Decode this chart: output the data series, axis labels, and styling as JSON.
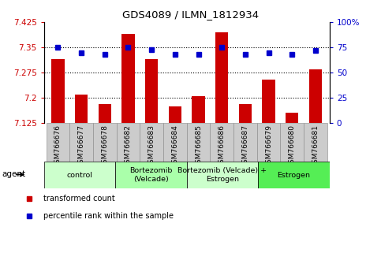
{
  "title": "GDS4089 / ILMN_1812934",
  "samples": [
    "GSM766676",
    "GSM766677",
    "GSM766678",
    "GSM766682",
    "GSM766683",
    "GSM766684",
    "GSM766685",
    "GSM766686",
    "GSM766687",
    "GSM766679",
    "GSM766680",
    "GSM766681"
  ],
  "bar_values": [
    7.315,
    7.21,
    7.18,
    7.39,
    7.315,
    7.175,
    7.205,
    7.395,
    7.18,
    7.255,
    7.155,
    7.285
  ],
  "percentile_values": [
    75,
    70,
    68,
    75,
    73,
    68,
    68,
    75,
    68,
    70,
    68,
    72
  ],
  "bar_color": "#cc0000",
  "percentile_color": "#0000cc",
  "ylim_left": [
    7.125,
    7.425
  ],
  "ylim_right": [
    0,
    100
  ],
  "yticks_left": [
    7.125,
    7.2,
    7.275,
    7.35,
    7.425
  ],
  "yticks_right": [
    0,
    25,
    50,
    75,
    100
  ],
  "ytick_labels_right": [
    "0",
    "25",
    "50",
    "75",
    "100%"
  ],
  "hlines": [
    7.2,
    7.275,
    7.35
  ],
  "groups": [
    {
      "label": "control",
      "start": 0,
      "end": 3,
      "color": "#ccffcc"
    },
    {
      "label": "Bortezomib\n(Velcade)",
      "start": 3,
      "end": 6,
      "color": "#aaffaa"
    },
    {
      "label": "Bortezomib (Velcade) +\nEstrogen",
      "start": 6,
      "end": 9,
      "color": "#ccffcc"
    },
    {
      "label": "Estrogen",
      "start": 9,
      "end": 12,
      "color": "#55ee55"
    }
  ],
  "agent_label": "agent",
  "legend_bar_label": "transformed count",
  "legend_pct_label": "percentile rank within the sample"
}
